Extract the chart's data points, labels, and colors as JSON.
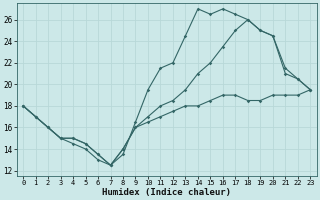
{
  "xlabel": "Humidex (Indice chaleur)",
  "bg_color": "#cce8e8",
  "grid_color": "#b8d8d8",
  "line_color": "#336666",
  "xlim": [
    -0.5,
    23.5
  ],
  "ylim": [
    11.5,
    27.5
  ],
  "xticks": [
    0,
    1,
    2,
    3,
    4,
    5,
    6,
    7,
    8,
    9,
    10,
    11,
    12,
    13,
    14,
    15,
    16,
    17,
    18,
    19,
    20,
    21,
    22,
    23
  ],
  "yticks": [
    12,
    14,
    16,
    18,
    20,
    22,
    24,
    26
  ],
  "line1_x": [
    0,
    1,
    2,
    3,
    4,
    5,
    6,
    7,
    8,
    9,
    10,
    11,
    12,
    13,
    14,
    15,
    16,
    17,
    18,
    19,
    20,
    21,
    22,
    23
  ],
  "line1_y": [
    18,
    17,
    16,
    15,
    14.5,
    14,
    13,
    12.5,
    14,
    16,
    16.5,
    17,
    17.5,
    18,
    18,
    18.5,
    19,
    19,
    18.5,
    18.5,
    19,
    19,
    19,
    19.5
  ],
  "line2_x": [
    0,
    1,
    2,
    3,
    4,
    5,
    6,
    7,
    8,
    9,
    10,
    11,
    12,
    13,
    14,
    15,
    16,
    17,
    18,
    19,
    20,
    21,
    22,
    23
  ],
  "line2_y": [
    18,
    17,
    16,
    15,
    15,
    14.5,
    13.5,
    12.5,
    13.5,
    16.5,
    19.5,
    21.5,
    22,
    24.5,
    27,
    26.5,
    27,
    26.5,
    26,
    25,
    24.5,
    21.5,
    20.5,
    19.5
  ],
  "line3_x": [
    0,
    1,
    2,
    3,
    4,
    5,
    6,
    7,
    8,
    9,
    10,
    11,
    12,
    13,
    14,
    15,
    16,
    17,
    18,
    19,
    20,
    21,
    22,
    23
  ],
  "line3_y": [
    18,
    17,
    16,
    15,
    15,
    14.5,
    13.5,
    12.5,
    14,
    16,
    17,
    18,
    18.5,
    19.5,
    21,
    22,
    23.5,
    25,
    26,
    25,
    24.5,
    21,
    20.5,
    19.5
  ]
}
